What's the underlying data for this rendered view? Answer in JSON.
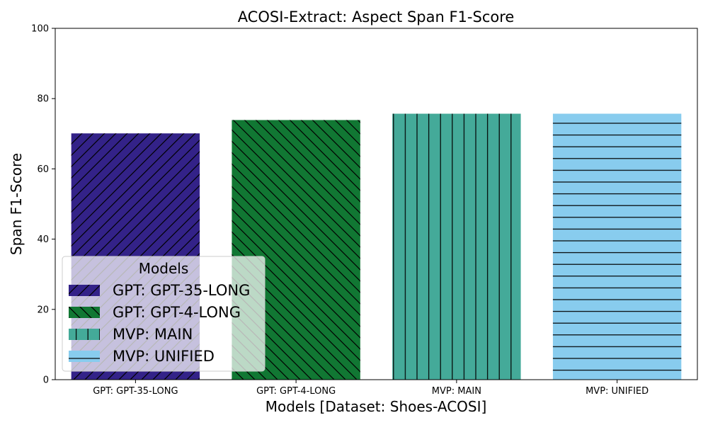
{
  "chart_data": {
    "type": "bar",
    "title": "ACOSI-Extract: Aspect Span F1-Score",
    "xlabel": "Models [Dataset: Shoes-ACOSI]",
    "ylabel": "Span F1-Score",
    "ylim": [
      0,
      100
    ],
    "yticks": [
      0,
      20,
      40,
      60,
      80,
      100
    ],
    "categories": [
      "GPT: GPT-35-LONG",
      "GPT: GPT-4-LONG",
      "MVP: MAIN",
      "MVP: UNIFIED"
    ],
    "values": [
      70.1,
      73.9,
      75.7,
      75.7
    ],
    "colors": [
      "#332288",
      "#117733",
      "#44aa99",
      "#88ccee"
    ],
    "hatches": [
      "diagonal-up",
      "diagonal-down",
      "vertical",
      "horizontal"
    ],
    "legend": {
      "title": "Models",
      "placement": "lower-left",
      "entries": [
        "GPT: GPT-35-LONG",
        "GPT: GPT-4-LONG",
        "MVP: MAIN",
        "MVP: UNIFIED"
      ]
    },
    "grid": false
  }
}
